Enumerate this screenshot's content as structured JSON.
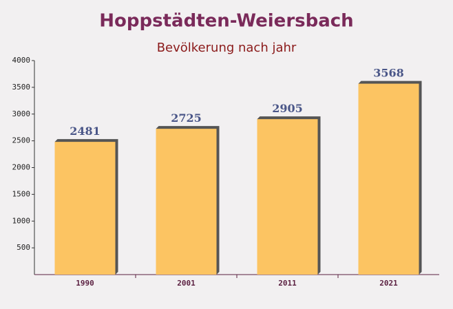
{
  "chart_data": {
    "type": "bar",
    "title": "Hoppstädten-Weiersbach",
    "subtitle": "Bevölkerung nach jahr",
    "categories": [
      "1990",
      "2001",
      "2011",
      "2021"
    ],
    "values": [
      2481,
      2725,
      2905,
      3568
    ],
    "color": "#fcc462",
    "ylim": [
      0,
      4000
    ],
    "yticks": [
      500,
      1000,
      1500,
      2000,
      2500,
      3000,
      3500,
      4000
    ],
    "grid": false
  }
}
